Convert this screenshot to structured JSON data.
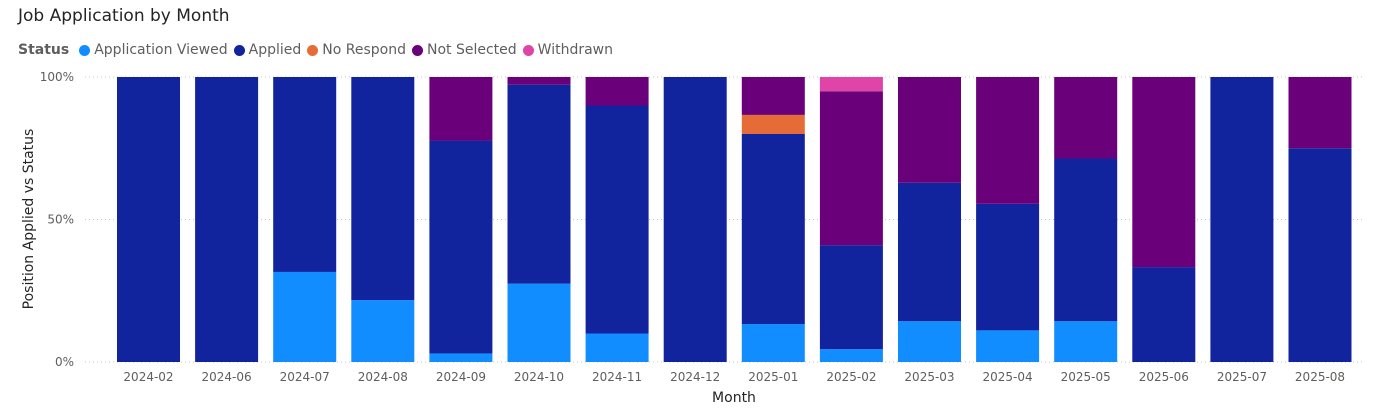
{
  "chart_data": {
    "type": "bar",
    "stacked": true,
    "normalized": true,
    "title": "Job Application by Month",
    "legend_title": "Status",
    "legend_position": "top-left",
    "xlabel": "Month",
    "ylabel": "Position Applied vs Status",
    "ylim": [
      0,
      100
    ],
    "yticks": [
      "0%",
      "50%",
      "100%"
    ],
    "ytick_values": [
      0,
      50,
      100
    ],
    "grid": true,
    "categories": [
      "2024-02",
      "2024-06",
      "2024-07",
      "2024-08",
      "2024-09",
      "2024-10",
      "2024-11",
      "2024-12",
      "2025-01",
      "2025-02",
      "2025-03",
      "2025-04",
      "2025-05",
      "2025-06",
      "2025-07",
      "2025-08"
    ],
    "series": [
      {
        "name": "Application Viewed",
        "color": "#118DFF",
        "values": [
          0,
          0,
          31.6,
          21.7,
          3,
          27.5,
          10,
          0,
          13.3,
          4.5,
          14.3,
          11.1,
          14.3,
          0,
          0,
          0
        ]
      },
      {
        "name": "Applied",
        "color": "#12239E",
        "values": [
          100,
          100,
          68.4,
          78.3,
          74.7,
          69.8,
          80,
          100,
          66.7,
          36.5,
          48.6,
          44.4,
          57.1,
          33.3,
          100,
          75
        ]
      },
      {
        "name": "No Respond",
        "color": "#E66C37",
        "values": [
          0,
          0,
          0,
          0,
          0,
          0,
          0,
          0,
          6.7,
          0,
          0,
          0,
          0,
          0,
          0,
          0
        ]
      },
      {
        "name": "Not Selected",
        "color": "#6B007B",
        "values": [
          0,
          0,
          0,
          0,
          22.3,
          2.7,
          10,
          0,
          13.3,
          54,
          37.1,
          44.5,
          28.6,
          66.7,
          0,
          25
        ]
      },
      {
        "name": "Withdrawn",
        "color": "#E044A7",
        "values": [
          0,
          0,
          0,
          0,
          0,
          0,
          0,
          0,
          0,
          5,
          0,
          0,
          0,
          0,
          0,
          0
        ]
      }
    ]
  }
}
